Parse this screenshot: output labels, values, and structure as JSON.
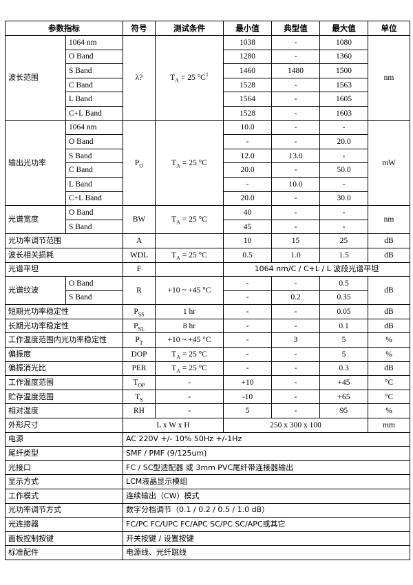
{
  "table": {
    "header": [
      "参数指标",
      "符号",
      "测试条件",
      "最小值",
      "典型值",
      "最大值",
      "单位"
    ],
    "rows": [
      {
        "kind": "banded",
        "param": "波长范围",
        "symbol": "λ?",
        "condition": {
          "pre": "T",
          "sub": "A",
          "post": " = 25 °C",
          "sup": "1"
        },
        "unit": "nm",
        "bands": [
          {
            "band": "1064 nm",
            "min": "1038",
            "typ": "-",
            "max": "1080"
          },
          {
            "band": "O Band",
            "min": "1280",
            "typ": "-",
            "max": "1360"
          },
          {
            "band": "S Band",
            "min": "1460",
            "typ": "1480",
            "max": "1500"
          },
          {
            "band": "C Band",
            "min": "1528",
            "typ": "-",
            "max": "1563"
          },
          {
            "band": "L Band",
            "min": "1564",
            "typ": "-",
            "max": "1605"
          },
          {
            "band": "C+L Band",
            "min": "1528",
            "typ": "-",
            "max": "1603"
          }
        ]
      },
      {
        "kind": "banded",
        "param": "输出光功率",
        "symbol": {
          "pre": "P",
          "sub": "O"
        },
        "condition": {
          "pre": "T",
          "sub": "A",
          "post": " = 25 °C"
        },
        "unit": "mW",
        "bands": [
          {
            "band": "1064 nm",
            "min": "10.0",
            "typ": "-",
            "max": "-"
          },
          {
            "band": "O Band",
            "min": "-",
            "typ": "-",
            "max": "20.0"
          },
          {
            "band": "S Band",
            "min": "12.0",
            "typ": "13.0",
            "max": "-"
          },
          {
            "band": "C Band",
            "min": "20.0",
            "typ": "-",
            "max": "50.0"
          },
          {
            "band": "L Band",
            "min": "-",
            "typ": "10.0",
            "max": "-"
          },
          {
            "band": "C+L Band",
            "min": "20.0",
            "typ": "-",
            "max": "30.0"
          }
        ]
      },
      {
        "kind": "banded",
        "param": "光谱宽度",
        "symbol": "BW",
        "condition": {
          "pre": "T",
          "sub": "A",
          "post": " = 25 °C"
        },
        "unit": "nm",
        "bands": [
          {
            "band": "O Band",
            "min": "40",
            "typ": "-",
            "max": "-"
          },
          {
            "band": "S Band",
            "min": "45",
            "typ": "-",
            "max": "-"
          }
        ]
      },
      {
        "kind": "simple",
        "param": "光功率调节范围",
        "symbol": "A",
        "condition": "",
        "min": "10",
        "typ": "15",
        "max": "25",
        "unit": "dB"
      },
      {
        "kind": "simple",
        "param": "波长相关损耗",
        "symbol": "WDL",
        "condition": {
          "pre": "T",
          "sub": "A",
          "post": " = 25 °C"
        },
        "min": "0.5",
        "typ": "1.0",
        "max": "1.5",
        "unit": "dB"
      },
      {
        "kind": "span4",
        "param": "光谱平坦",
        "symbol": "F",
        "condition": "",
        "value": "1064 nm/C / C+L / L  波段光谱平坦"
      },
      {
        "kind": "banded",
        "param": "光谱纹波",
        "symbol": "R",
        "condition": "+10 ~ +45 °C",
        "unit": "dB",
        "bands": [
          {
            "band": "O Band",
            "min": "-",
            "typ": "-",
            "max": "0.5"
          },
          {
            "band": "S Band",
            "min": "-",
            "typ": "0.2",
            "max": "0.35"
          }
        ]
      },
      {
        "kind": "simple",
        "param": "短期光功率稳定性",
        "symbol": {
          "pre": "P",
          "sub": "SS"
        },
        "condition": "1 hr",
        "min": "-",
        "typ": "-",
        "max": "0.05",
        "unit": "dB"
      },
      {
        "kind": "simple",
        "param": "长期光功率稳定性",
        "symbol": {
          "pre": "P",
          "sub": "SL"
        },
        "condition": "8 hr",
        "min": "-",
        "typ": "-",
        "max": "0.1",
        "unit": "dB"
      },
      {
        "kind": "simple",
        "param": "工作温度范围内光功率稳定性",
        "symbol": {
          "pre": "P",
          "sub": "T"
        },
        "condition": "+10 ~ +45 °C",
        "min": "-",
        "typ": "3",
        "max": "5",
        "unit": "%"
      },
      {
        "kind": "simple",
        "param": "偏振度",
        "symbol": "DOP",
        "condition": {
          "pre": "T",
          "sub": "A",
          "post": " = 25 °C"
        },
        "min": "-",
        "typ": "-",
        "max": "5",
        "unit": "%"
      },
      {
        "kind": "simple",
        "param": "偏振消光比",
        "symbol": "PER",
        "condition": {
          "pre": "T",
          "sub": "A",
          "post": " = 25 °C"
        },
        "min": "-",
        "typ": "-",
        "max": "0.3",
        "unit": "dB"
      },
      {
        "kind": "simple",
        "param": "工作温度范围",
        "symbol": {
          "pre": "T",
          "sub": "OP"
        },
        "condition": "-",
        "min": "+10",
        "typ": "-",
        "max": "+45",
        "unit": "°C"
      },
      {
        "kind": "simple",
        "param": "贮存温度范围",
        "symbol": {
          "pre": "T",
          "sub": "S"
        },
        "condition": "-",
        "min": "-10",
        "typ": "-",
        "max": "+65",
        "unit": "°C"
      },
      {
        "kind": "simple",
        "param": "相对湿度",
        "symbol": "RH",
        "condition": "-",
        "min": "5",
        "typ": "-",
        "max": "95",
        "unit": "%"
      },
      {
        "kind": "dims",
        "param": "外形尺寸",
        "label": "L x W x H",
        "value": "250 x 300 x 100",
        "unit": "mm"
      },
      {
        "kind": "spec",
        "param": "电源",
        "value": "AC 220V +/- 10% 50Hz +/-1Hz"
      },
      {
        "kind": "spec",
        "param": "尾纤类型",
        "value": "SMF / PMF (9/125um)"
      },
      {
        "kind": "spec",
        "param": "光接口",
        "value": "FC / SC型适配器 或 3mm PVC尾纤带连接器输出"
      },
      {
        "kind": "spec",
        "param": "显示方式",
        "value": "LCM液晶显示模组"
      },
      {
        "kind": "spec",
        "param": "工作模式",
        "value": "连续输出（CW）模式"
      },
      {
        "kind": "spec",
        "param": "光功率调节方式",
        "value": "数字分档调节（0.1 / 0.2 / 0.5 / 1.0 dB）"
      },
      {
        "kind": "spec",
        "param": "光连接器",
        "value": "FC/PC FC/UPC FC/APC SC/PC SC/APC或其它"
      },
      {
        "kind": "spec",
        "param": "面板控制按键",
        "value": "开关按键 / 设置按键"
      },
      {
        "kind": "spec",
        "param": "标准配件",
        "value": "电源线、光纤跳线"
      }
    ]
  }
}
